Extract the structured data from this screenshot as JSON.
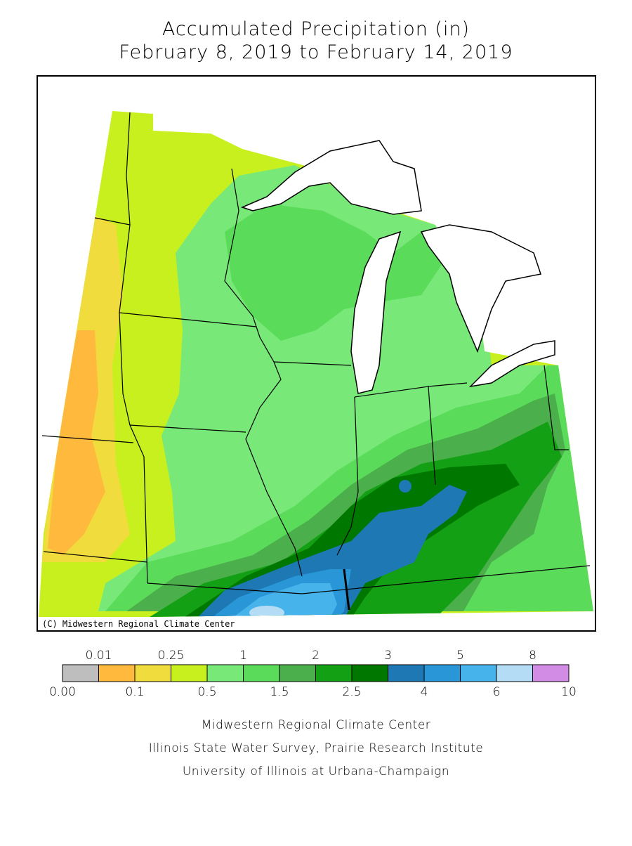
{
  "title": [
    "Accumulated Precipitation (in)",
    "February 8, 2019 to February 14, 2019"
  ],
  "copyright": "(C) Midwestern Regional Climate Center",
  "legend": {
    "colors": [
      "#bebebe",
      "#ffb93c",
      "#f0dc3c",
      "#c8f01e",
      "#78e878",
      "#5adc5a",
      "#4bb04b",
      "#14a014",
      "#007800",
      "#1e78b4",
      "#2896d7",
      "#46b4eb",
      "#b4dcf5",
      "#d28ce6"
    ],
    "labels": [
      "0.00",
      "0.01",
      "0.1",
      "0.25",
      "0.5",
      "1",
      "1.5",
      "2",
      "2.5",
      "3",
      "4",
      "5",
      "6",
      "8",
      "10"
    ]
  },
  "footer": [
    "Midwestern Regional Climate Center",
    "Illinois State Water Survey, Prairie Research Institute",
    "University of Illinois at Urbana-Champaign"
  ]
}
